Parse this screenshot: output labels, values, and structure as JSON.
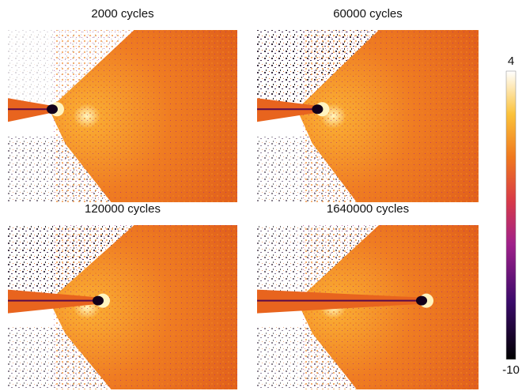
{
  "panels": [
    {
      "title": "2000 cycles"
    },
    {
      "title": "60000 cycles"
    },
    {
      "title": "120000 cycles"
    },
    {
      "title": "1640000 cycles"
    }
  ],
  "colorbar": {
    "ticks": [
      4,
      -10
    ]
  }
}
